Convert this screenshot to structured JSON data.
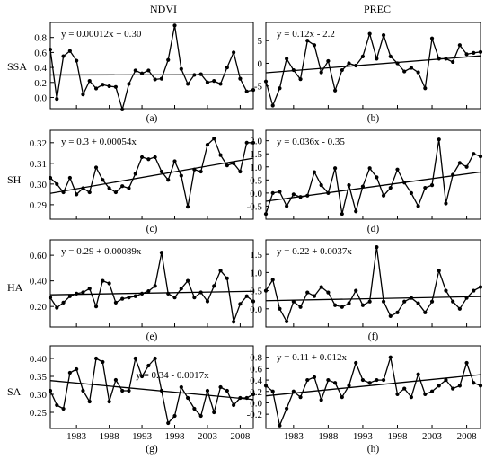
{
  "header": {
    "left": "NDVI",
    "right": "PREC"
  },
  "rows": [
    "SSA",
    "SH",
    "HA",
    "SA"
  ],
  "chart_data": [
    {
      "type": "line",
      "id": "a",
      "label": "(a)",
      "equation": "y = 0.00012x + 0.30",
      "x_range": [
        1979,
        2010
      ],
      "ylim": [
        -0.15,
        1.0
      ],
      "yticks": [
        0.0,
        0.2,
        0.4,
        0.6,
        0.8
      ],
      "tick_decimals": 1,
      "x": [
        1979,
        1980,
        1981,
        1982,
        1983,
        1984,
        1985,
        1986,
        1987,
        1988,
        1989,
        1990,
        1991,
        1992,
        1993,
        1994,
        1995,
        1996,
        1997,
        1998,
        1999,
        2000,
        2001,
        2002,
        2003,
        2004,
        2005,
        2006,
        2007,
        2008,
        2009,
        2010
      ],
      "values": [
        0.64,
        -0.02,
        0.55,
        0.62,
        0.49,
        0.04,
        0.22,
        0.12,
        0.17,
        0.15,
        0.14,
        -0.16,
        0.18,
        0.36,
        0.32,
        0.36,
        0.24,
        0.25,
        0.5,
        0.96,
        0.38,
        0.18,
        0.3,
        0.31,
        0.2,
        0.22,
        0.18,
        0.4,
        0.6,
        0.25,
        0.08,
        0.1
      ],
      "trend": [
        0.3,
        0.3037
      ]
    },
    {
      "type": "line",
      "id": "b",
      "label": "(b)",
      "equation": "y = 0.12x - 2.2",
      "x_range": [
        1979,
        2010
      ],
      "ylim": [
        -10,
        9
      ],
      "yticks": [
        -5,
        0,
        5
      ],
      "tick_decimals": 0,
      "x": [
        1979,
        1980,
        1981,
        1982,
        1983,
        1984,
        1985,
        1986,
        1987,
        1988,
        1989,
        1990,
        1991,
        1992,
        1993,
        1994,
        1995,
        1996,
        1997,
        1998,
        1999,
        2000,
        2001,
        2002,
        2003,
        2004,
        2005,
        2006,
        2007,
        2008,
        2009,
        2010
      ],
      "values": [
        -4.0,
        -9.3,
        -5.5,
        1.0,
        -1.5,
        -3.5,
        5.0,
        4.0,
        -2.0,
        0.5,
        -6.0,
        -1.5,
        0.0,
        -0.5,
        1.5,
        6.5,
        1.0,
        6.2,
        1.5,
        0.0,
        -1.8,
        -1.0,
        -2.0,
        -5.5,
        5.5,
        1.0,
        1.0,
        0.3,
        4.0,
        2.0,
        2.3,
        2.5
      ],
      "trend": [
        -2.08,
        1.64
      ]
    },
    {
      "type": "line",
      "id": "c",
      "label": "(c)",
      "equation": "y = 0.3 + 0.00054x",
      "x_range": [
        1979,
        2010
      ],
      "ylim": [
        0.283,
        0.326
      ],
      "yticks": [
        0.29,
        0.3,
        0.31,
        0.32
      ],
      "tick_decimals": 2,
      "x": [
        1979,
        1980,
        1981,
        1982,
        1983,
        1984,
        1985,
        1986,
        1987,
        1988,
        1989,
        1990,
        1991,
        1992,
        1993,
        1994,
        1995,
        1996,
        1997,
        1998,
        1999,
        2000,
        2001,
        2002,
        2003,
        2004,
        2005,
        2006,
        2007,
        2008,
        2009,
        2010
      ],
      "values": [
        0.303,
        0.3,
        0.296,
        0.303,
        0.295,
        0.298,
        0.296,
        0.308,
        0.302,
        0.298,
        0.296,
        0.299,
        0.298,
        0.305,
        0.313,
        0.312,
        0.313,
        0.306,
        0.302,
        0.311,
        0.304,
        0.289,
        0.307,
        0.306,
        0.319,
        0.322,
        0.314,
        0.309,
        0.31,
        0.306,
        0.32,
        0.32
      ],
      "trend": [
        0.2955,
        0.3125
      ]
    },
    {
      "type": "line",
      "id": "d",
      "label": "(d)",
      "equation": "y = 0.036x - 0.35",
      "x_range": [
        1979,
        2010
      ],
      "ylim": [
        -1.0,
        2.4
      ],
      "yticks": [
        -0.5,
        0.0,
        0.5,
        1.0,
        1.5,
        2.0
      ],
      "tick_decimals": 1,
      "x": [
        1979,
        1980,
        1981,
        1982,
        1983,
        1984,
        1985,
        1986,
        1987,
        1988,
        1989,
        1990,
        1991,
        1992,
        1993,
        1994,
        1995,
        1996,
        1997,
        1998,
        1999,
        2000,
        2001,
        2002,
        2003,
        2004,
        2005,
        2006,
        2007,
        2008,
        2009,
        2010
      ],
      "values": [
        -0.8,
        0.0,
        0.05,
        -0.5,
        -0.05,
        -0.15,
        -0.1,
        0.8,
        0.3,
        0.0,
        0.95,
        -0.8,
        0.3,
        -0.7,
        0.25,
        0.95,
        0.6,
        -0.1,
        0.2,
        0.9,
        0.4,
        0.0,
        -0.5,
        0.2,
        0.3,
        2.05,
        -0.4,
        0.7,
        1.15,
        1.0,
        1.5,
        1.4
      ],
      "trend": [
        -0.314,
        0.802
      ]
    },
    {
      "type": "line",
      "id": "e",
      "label": "(e)",
      "equation": "y = 0.29 + 0.00089x",
      "x_range": [
        1979,
        2010
      ],
      "ylim": [
        0.04,
        0.72
      ],
      "yticks": [
        0.2,
        0.4,
        0.6
      ],
      "tick_decimals": 2,
      "x": [
        1979,
        1980,
        1981,
        1982,
        1983,
        1984,
        1985,
        1986,
        1987,
        1988,
        1989,
        1990,
        1991,
        1992,
        1993,
        1994,
        1995,
        1996,
        1997,
        1998,
        1999,
        2000,
        2001,
        2002,
        2003,
        2004,
        2005,
        2006,
        2007,
        2008,
        2009,
        2010
      ],
      "values": [
        0.27,
        0.19,
        0.23,
        0.28,
        0.3,
        0.31,
        0.34,
        0.2,
        0.4,
        0.38,
        0.23,
        0.26,
        0.27,
        0.28,
        0.3,
        0.32,
        0.36,
        0.62,
        0.3,
        0.27,
        0.34,
        0.4,
        0.27,
        0.31,
        0.24,
        0.36,
        0.48,
        0.42,
        0.08,
        0.22,
        0.28,
        0.24
      ],
      "trend": [
        0.291,
        0.3186
      ]
    },
    {
      "type": "line",
      "id": "f",
      "label": "(f)",
      "equation": "y = 0.22 + 0.0037x",
      "x_range": [
        1979,
        2010
      ],
      "ylim": [
        -0.5,
        1.9
      ],
      "yticks": [
        0.0,
        0.5,
        1.0,
        1.5
      ],
      "tick_decimals": 1,
      "x": [
        1979,
        1980,
        1981,
        1982,
        1983,
        1984,
        1985,
        1986,
        1987,
        1988,
        1989,
        1990,
        1991,
        1992,
        1993,
        1994,
        1995,
        1996,
        1997,
        1998,
        1999,
        2000,
        2001,
        2002,
        2003,
        2004,
        2005,
        2006,
        2007,
        2008,
        2009,
        2010
      ],
      "values": [
        0.5,
        0.8,
        0.0,
        -0.35,
        0.2,
        0.05,
        0.45,
        0.35,
        0.6,
        0.45,
        0.1,
        0.05,
        0.15,
        0.5,
        0.1,
        0.2,
        1.7,
        0.2,
        -0.2,
        -0.1,
        0.2,
        0.3,
        0.15,
        -0.1,
        0.2,
        1.05,
        0.5,
        0.2,
        0.0,
        0.3,
        0.5,
        0.6
      ],
      "trend": [
        0.2237,
        0.3384
      ]
    },
    {
      "type": "line",
      "id": "g",
      "label": "(g)",
      "equation": "y = 0.34 - 0.0017x",
      "x_range": [
        1979,
        2010
      ],
      "ylim": [
        0.205,
        0.435
      ],
      "yticks": [
        0.25,
        0.3,
        0.35,
        0.4
      ],
      "tick_decimals": 2,
      "x": [
        1979,
        1980,
        1981,
        1982,
        1983,
        1984,
        1985,
        1986,
        1987,
        1988,
        1989,
        1990,
        1991,
        1992,
        1993,
        1994,
        1995,
        1996,
        1997,
        1998,
        1999,
        2000,
        2001,
        2002,
        2003,
        2004,
        2005,
        2006,
        2007,
        2008,
        2009,
        2010
      ],
      "values": [
        0.31,
        0.27,
        0.26,
        0.36,
        0.37,
        0.31,
        0.28,
        0.4,
        0.39,
        0.28,
        0.34,
        0.31,
        0.31,
        0.4,
        0.35,
        0.38,
        0.4,
        0.31,
        0.22,
        0.24,
        0.32,
        0.29,
        0.26,
        0.24,
        0.31,
        0.25,
        0.32,
        0.31,
        0.27,
        0.29,
        0.29,
        0.3
      ],
      "trend": [
        0.3383,
        0.2856
      ]
    },
    {
      "type": "line",
      "id": "h",
      "label": "(h)",
      "equation": "y = 0.11 + 0.012x",
      "x_range": [
        1979,
        2010
      ],
      "ylim": [
        -0.45,
        1.0
      ],
      "yticks": [
        -0.2,
        0.0,
        0.2,
        0.4,
        0.6,
        0.8
      ],
      "tick_decimals": 1,
      "x": [
        1979,
        1980,
        1981,
        1982,
        1983,
        1984,
        1985,
        1986,
        1987,
        1988,
        1989,
        1990,
        1991,
        1992,
        1993,
        1994,
        1995,
        1996,
        1997,
        1998,
        1999,
        2000,
        2001,
        2002,
        2003,
        2004,
        2005,
        2006,
        2007,
        2008,
        2009,
        2010
      ],
      "values": [
        0.3,
        0.2,
        -0.4,
        -0.1,
        0.2,
        0.1,
        0.4,
        0.45,
        0.05,
        0.4,
        0.35,
        0.1,
        0.3,
        0.7,
        0.4,
        0.35,
        0.4,
        0.4,
        0.8,
        0.15,
        0.25,
        0.1,
        0.5,
        0.15,
        0.2,
        0.3,
        0.4,
        0.25,
        0.3,
        0.7,
        0.35,
        0.3
      ],
      "trend": [
        0.122,
        0.494
      ]
    }
  ],
  "x_axis": {
    "ticks": [
      1983,
      1988,
      1993,
      1998,
      2003,
      2008
    ],
    "labels": [
      "1983",
      "1988",
      "1993",
      "1998",
      "2003",
      "2008"
    ]
  }
}
